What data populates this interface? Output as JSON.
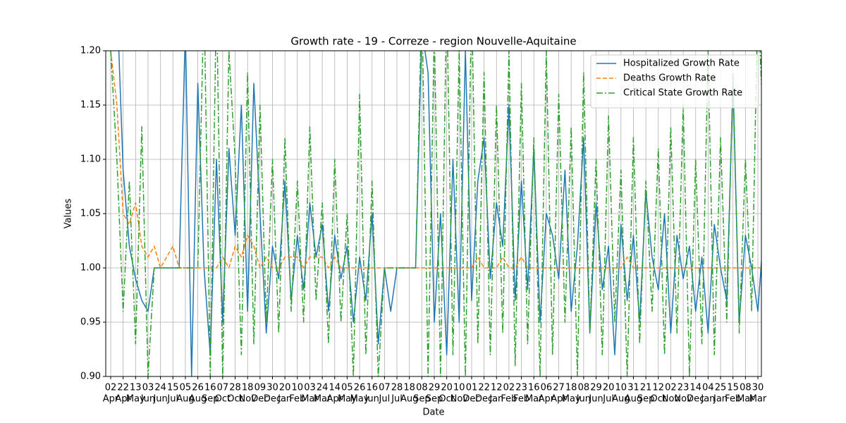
{
  "chart_data": {
    "type": "line",
    "title": "Growth rate - 19 - Correze - region Nouvelle-Aquitaine",
    "xlabel": "Date",
    "ylabel": "Values",
    "categories": [
      {
        "day": "02",
        "month": "Apr"
      },
      null,
      {
        "day": "22",
        "month": "Apr"
      },
      null,
      {
        "day": "13",
        "month": "May"
      },
      null,
      {
        "day": "03",
        "month": "Jun"
      },
      null,
      {
        "day": "24",
        "month": "Jun"
      },
      null,
      {
        "day": "15",
        "month": "Jul"
      },
      null,
      {
        "day": "05",
        "month": "Aug"
      },
      null,
      {
        "day": "26",
        "month": "Aug"
      },
      null,
      {
        "day": "16",
        "month": "Sep"
      },
      null,
      {
        "day": "07",
        "month": "Oct"
      },
      null,
      {
        "day": "28",
        "month": "Oct"
      },
      null,
      {
        "day": "18",
        "month": "Nov"
      },
      null,
      {
        "day": "09",
        "month": "Dec"
      },
      null,
      {
        "day": "30",
        "month": "Dec"
      },
      null,
      {
        "day": "20",
        "month": "Jan"
      },
      null,
      {
        "day": "10",
        "month": "Feb"
      },
      null,
      {
        "day": "03",
        "month": "Mar"
      },
      null,
      {
        "day": "24",
        "month": "Mar"
      },
      null,
      {
        "day": "14",
        "month": "Apr"
      },
      null,
      {
        "day": "05",
        "month": "May"
      },
      null,
      {
        "day": "26",
        "month": "May"
      },
      null,
      {
        "day": "16",
        "month": "Jun"
      },
      null,
      {
        "day": "07",
        "month": "Jul"
      },
      null,
      {
        "day": "28",
        "month": "Jul"
      },
      null,
      {
        "day": "18",
        "month": "Aug"
      },
      null,
      {
        "day": "08",
        "month": "Sep"
      },
      null,
      {
        "day": "29",
        "month": "Sep"
      },
      null,
      {
        "day": "20",
        "month": "Oct"
      },
      null,
      {
        "day": "10",
        "month": "Nov"
      },
      null,
      {
        "day": "01",
        "month": "Dec"
      },
      null,
      {
        "day": "22",
        "month": "Dec"
      },
      null,
      {
        "day": "12",
        "month": "Jan"
      },
      null,
      {
        "day": "02",
        "month": "Feb"
      },
      null,
      {
        "day": "23",
        "month": "Feb"
      },
      null,
      {
        "day": "16",
        "month": "Mar"
      },
      null,
      {
        "day": "06",
        "month": "Apr"
      },
      null,
      {
        "day": "27",
        "month": "Apr"
      },
      null,
      {
        "day": "18",
        "month": "May"
      },
      null,
      {
        "day": "08",
        "month": "Jun"
      },
      null,
      {
        "day": "29",
        "month": "Jun"
      },
      null,
      {
        "day": "20",
        "month": "Jul"
      },
      null,
      {
        "day": "10",
        "month": "Aug"
      },
      null,
      {
        "day": "31",
        "month": "Aug"
      },
      null,
      {
        "day": "21",
        "month": "Sep"
      },
      null,
      {
        "day": "12",
        "month": "Oct"
      },
      null,
      {
        "day": "02",
        "month": "Nov"
      },
      null,
      {
        "day": "23",
        "month": "Nov"
      },
      null,
      {
        "day": "14",
        "month": "Dec"
      },
      null,
      {
        "day": "04",
        "month": "Jan"
      },
      null,
      {
        "day": "25",
        "month": "Jan"
      },
      null,
      {
        "day": "15",
        "month": "Feb"
      },
      null,
      {
        "day": "08",
        "month": "Mar"
      },
      null,
      {
        "day": "30",
        "month": "Mar"
      },
      null
    ],
    "series": [
      {
        "name": "Hospitalized Growth Rate",
        "color": "#1f77b4",
        "style": "solid",
        "values": [
          1.2,
          1.25,
          1.09,
          1.02,
          0.99,
          0.97,
          0.96,
          1.0,
          1.0,
          1.0,
          1.0,
          1.0,
          1.22,
          0.9,
          1.17,
          1.0,
          0.92,
          1.1,
          0.95,
          1.11,
          1.03,
          1.15,
          0.96,
          1.17,
          1.05,
          0.94,
          1.02,
          0.99,
          1.08,
          0.97,
          1.03,
          0.98,
          1.06,
          1.01,
          1.04,
          0.96,
          1.03,
          0.99,
          1.02,
          0.95,
          1.01,
          0.97,
          1.05,
          0.93,
          1.0,
          0.96,
          1.0,
          1.0,
          1.0,
          1.0,
          1.22,
          1.18,
          0.95,
          1.05,
          0.92,
          1.1,
          0.95,
          1.2,
          0.97,
          1.08,
          1.12,
          0.99,
          1.06,
          1.02,
          1.15,
          0.97,
          1.08,
          0.98,
          1.11,
          0.95,
          1.05,
          1.03,
          0.99,
          1.09,
          0.96,
          1.02,
          1.12,
          0.94,
          1.06,
          0.98,
          1.02,
          0.92,
          1.04,
          0.97,
          1.03,
          0.95,
          1.07,
          1.01,
          0.98,
          1.05,
          0.94,
          1.03,
          0.99,
          1.02,
          0.96,
          1.01,
          0.94,
          1.04,
          1.0,
          0.97,
          1.17,
          0.95,
          1.03,
          1.0,
          0.96,
          1.04
        ]
      },
      {
        "name": "Deaths Growth Rate",
        "color": "#ff7f0e",
        "style": "dashed",
        "values": [
          1.2,
          1.15,
          1.05,
          1.04,
          1.06,
          1.02,
          1.01,
          1.02,
          1.0,
          1.01,
          1.02,
          1.0,
          1.0,
          1.0,
          1.0,
          1.0,
          1.0,
          1.0,
          1.01,
          1.0,
          1.02,
          1.01,
          1.03,
          1.02,
          1.0,
          1.01,
          1.0,
          1.0,
          1.01,
          1.01,
          1.01,
          1.0,
          1.01,
          1.01,
          1.01,
          1.0,
          1.01,
          1.0,
          1.0,
          1.0,
          1.0,
          1.0,
          1.0,
          1.0,
          1.0,
          1.0,
          1.0,
          1.0,
          1.0,
          1.0,
          1.0,
          1.0,
          1.0,
          1.0,
          1.0,
          1.0,
          1.0,
          1.0,
          1.0,
          1.01,
          1.0,
          1.0,
          1.0,
          1.01,
          1.0,
          1.0,
          1.01,
          1.0,
          1.0,
          1.0,
          1.0,
          1.0,
          1.0,
          1.0,
          1.0,
          1.0,
          1.0,
          1.0,
          1.0,
          1.0,
          1.0,
          1.0,
          1.0,
          1.01,
          1.0,
          1.0,
          1.0,
          1.0,
          1.0,
          1.0,
          1.0,
          1.0,
          1.0,
          1.0,
          1.0,
          1.0,
          1.0,
          1.0,
          1.0,
          1.0,
          1.0,
          1.0,
          1.0,
          1.0,
          1.0,
          1.0
        ]
      },
      {
        "name": "Critical State Growth Rate",
        "color": "#2ca02c",
        "style": "dashdot",
        "values": [
          1.2,
          1.1,
          0.96,
          1.08,
          0.93,
          1.13,
          0.9,
          1.0,
          1.0,
          1.0,
          1.0,
          1.0,
          1.0,
          1.0,
          1.0,
          1.25,
          0.9,
          1.25,
          0.9,
          1.2,
          1.1,
          0.92,
          1.18,
          0.93,
          1.15,
          0.95,
          1.1,
          0.94,
          1.12,
          0.96,
          1.08,
          0.95,
          1.13,
          0.97,
          1.06,
          0.93,
          1.1,
          0.95,
          1.05,
          0.9,
          1.16,
          0.92,
          1.08,
          0.9,
          1.0,
          1.0,
          1.0,
          1.0,
          1.0,
          1.0,
          1.25,
          0.9,
          1.22,
          0.9,
          1.25,
          0.92,
          1.2,
          0.9,
          1.25,
          0.93,
          1.18,
          0.92,
          1.15,
          0.94,
          1.2,
          0.91,
          1.17,
          0.93,
          1.12,
          0.9,
          1.2,
          0.92,
          1.16,
          0.95,
          1.13,
          0.9,
          1.18,
          0.94,
          1.1,
          0.92,
          1.14,
          0.95,
          1.09,
          0.9,
          1.12,
          0.93,
          1.08,
          0.96,
          1.11,
          0.92,
          1.13,
          0.94,
          1.15,
          0.9,
          1.1,
          0.93,
          1.2,
          0.92,
          1.12,
          0.95,
          1.18,
          0.94,
          1.1,
          0.96,
          1.25,
          1.11
        ]
      }
    ],
    "ylim": [
      0.9,
      1.2
    ],
    "yticks": [
      {
        "value": 0.9,
        "label": "0.90"
      },
      0.95,
      {
        "value": 1.0,
        "label": "1.00"
      },
      1.05,
      {
        "value": 1.1,
        "label": "1.10"
      },
      1.15,
      {
        "value": 1.2,
        "label": "1.20"
      }
    ],
    "grid": true,
    "legend": "upper right"
  }
}
